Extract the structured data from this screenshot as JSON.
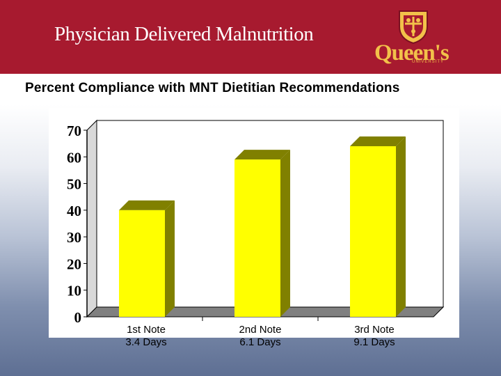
{
  "header": {
    "title": "Physician Delivered Malnutrition",
    "logo_text": "Queen's",
    "logo_subtext": "UNIVERSITY"
  },
  "subtitle": "Percent Compliance with MNT Dietitian Recommendations",
  "colors": {
    "header_bg": "#a71a2f",
    "bar_front": "#ffff00",
    "bar_side": "#808000",
    "floor": "#808080",
    "logo": "#f2c14a"
  },
  "chart_data": {
    "type": "bar",
    "title": "Percent Compliance with MNT Dietitian Recommendations",
    "categories": [
      {
        "line1": "1st Note",
        "line2": "3.4 Days"
      },
      {
        "line1": "2nd Note",
        "line2": "6.1 Days"
      },
      {
        "line1": "3rd Note",
        "line2": "9.1 Days"
      }
    ],
    "values": [
      40,
      59,
      64
    ],
    "ylim": [
      0,
      70
    ],
    "yticks": [
      0,
      10,
      20,
      30,
      40,
      50,
      60,
      70
    ],
    "xlabel": "",
    "ylabel": "",
    "grid": false,
    "legend": "none"
  }
}
